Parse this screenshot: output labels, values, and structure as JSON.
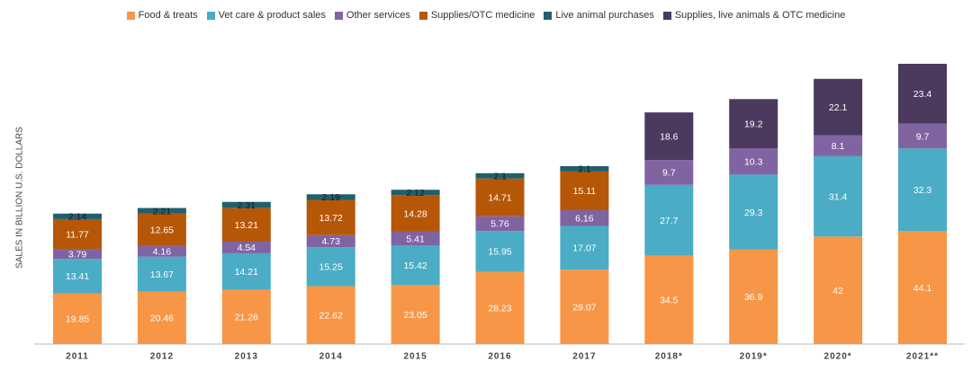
{
  "chart_data": {
    "type": "stacked-bar",
    "y_label": "SALES IN BILLION U.S. DOLLARS",
    "categories": [
      "2011",
      "2012",
      "2013",
      "2014",
      "2015",
      "2016",
      "2017",
      "2018*",
      "2019*",
      "2020*",
      "2021**"
    ],
    "series": [
      {
        "name": "Food & treats",
        "color": "#f79646",
        "values": [
          19.85,
          20.46,
          21.26,
          22.62,
          23.05,
          28.23,
          29.07,
          34.5,
          36.9,
          42,
          44.1
        ]
      },
      {
        "name": "Vet care & product sales",
        "color": "#4bacc6",
        "values": [
          13.41,
          13.67,
          14.21,
          15.25,
          15.42,
          15.95,
          17.07,
          27.7,
          29.3,
          31.4,
          32.3
        ]
      },
      {
        "name": "Other services",
        "color": "#8064a2",
        "values": [
          3.79,
          4.16,
          4.54,
          4.73,
          5.41,
          5.76,
          6.16,
          9.7,
          10.3,
          8.1,
          9.7
        ]
      },
      {
        "name": "Supplies/OTC medicine",
        "color": "#b65708",
        "values": [
          11.77,
          12.65,
          13.21,
          13.72,
          14.28,
          14.71,
          15.11,
          null,
          null,
          null,
          null
        ]
      },
      {
        "name": "Live animal purchases",
        "color": "#215f6e",
        "values": [
          2.14,
          2.21,
          2.31,
          2.19,
          2.12,
          2.1,
          2.1,
          null,
          null,
          null,
          null
        ]
      },
      {
        "name": "Supplies, live animals & OTC medicine",
        "color": "#4b3a5e",
        "values": [
          null,
          null,
          null,
          null,
          null,
          null,
          null,
          18.6,
          19.2,
          22.1,
          23.4
        ]
      }
    ]
  }
}
